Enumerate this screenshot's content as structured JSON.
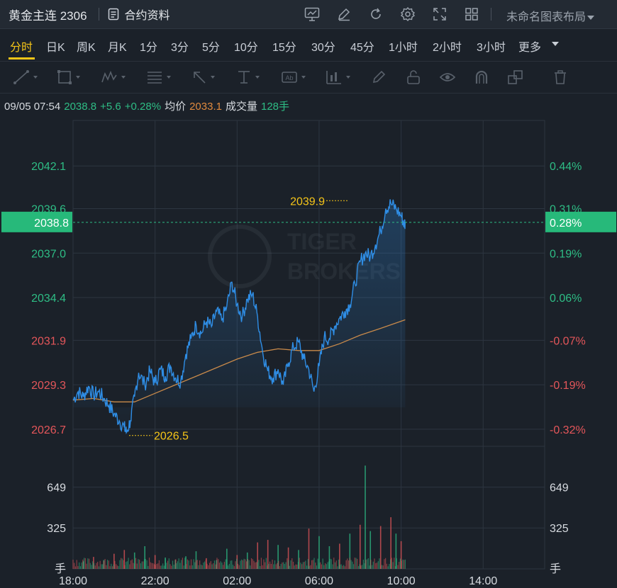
{
  "header": {
    "title": "黄金主连 2306",
    "doc_link": "合约资料",
    "layout_label": "未命名图表布局",
    "icons": [
      "chart-line-icon",
      "pen-edit-icon",
      "refresh-icon",
      "gear-icon",
      "fullscreen-icon",
      "grid-layout-icon"
    ]
  },
  "tabs": [
    "分时",
    "日K",
    "周K",
    "月K",
    "1分",
    "3分",
    "5分",
    "10分",
    "15分",
    "30分",
    "45分",
    "1小时",
    "2小时",
    "3小时",
    "更多"
  ],
  "active_tab": "分时",
  "drawing_tools": [
    "line-draw-icon",
    "rectangle-icon",
    "pattern-icon",
    "fib-icon",
    "arrow-icon",
    "measure-icon",
    "text-label-icon",
    "bars-pattern-icon",
    "brush-icon",
    "lock-icon",
    "eye-icon",
    "magnet-icon",
    "clone-icon",
    "trash-icon"
  ],
  "info": {
    "datetime": "09/05 07:54",
    "price": "2038.8",
    "change": "+5.6",
    "change_pct": "+0.28%",
    "avg_label": "均价",
    "avg_value": "2033.1",
    "volume_label": "成交量",
    "volume_value": "128手"
  },
  "colors": {
    "up": "#2ebd85",
    "down": "#e4565a",
    "price_line": "#2f8ee6",
    "avg_line": "#c98a4a",
    "highlight": "#f5c518",
    "background": "#1b2129"
  },
  "watermark": "TIGER BROKERS",
  "chart_data": {
    "type": "line",
    "x_ticks": [
      "18:00",
      "22:00",
      "02:00",
      "06:00",
      "10:00",
      "14:00"
    ],
    "y_ticks_left": [
      "2042.1",
      "2039.6",
      "2037.0",
      "2034.4",
      "2031.9",
      "2029.3",
      "2026.7"
    ],
    "y_ticks_right": [
      "0.44%",
      "0.31%",
      "0.19%",
      "0.06%",
      "-0.07%",
      "-0.19%",
      "-0.32%"
    ],
    "current_price_label": "2038.8",
    "current_pct_label": "0.28%",
    "high_label": "2039.9",
    "low_label": "2026.5",
    "ylim": [
      2025.7,
      2043.6
    ],
    "x_hours_range": [
      18,
      41
    ],
    "price_series": [
      [
        18.0,
        2028.4
      ],
      [
        18.25,
        2028.9
      ],
      [
        18.5,
        2028.6
      ],
      [
        18.75,
        2029.2
      ],
      [
        19.0,
        2028.7
      ],
      [
        19.25,
        2028.9
      ],
      [
        19.5,
        2028.5
      ],
      [
        19.75,
        2028.1
      ],
      [
        20.0,
        2027.6
      ],
      [
        20.25,
        2027.2
      ],
      [
        20.5,
        2026.8
      ],
      [
        20.6,
        2026.5
      ],
      [
        20.8,
        2027.2
      ],
      [
        21.0,
        2028.6
      ],
      [
        21.2,
        2030.0
      ],
      [
        21.5,
        2029.3
      ],
      [
        21.75,
        2030.1
      ],
      [
        22.0,
        2029.4
      ],
      [
        22.25,
        2030.2
      ],
      [
        22.5,
        2029.8
      ],
      [
        22.75,
        2030.4
      ],
      [
        23.0,
        2029.7
      ],
      [
        23.25,
        2029.5
      ],
      [
        23.5,
        2031.1
      ],
      [
        23.75,
        2032.0
      ],
      [
        24.0,
        2032.8
      ],
      [
        24.25,
        2032.3
      ],
      [
        24.5,
        2033.0
      ],
      [
        24.75,
        2032.7
      ],
      [
        25.0,
        2033.6
      ],
      [
        25.25,
        2033.1
      ],
      [
        25.5,
        2033.9
      ],
      [
        25.75,
        2035.3
      ],
      [
        26.0,
        2034.0
      ],
      [
        26.25,
        2033.3
      ],
      [
        26.5,
        2034.3
      ],
      [
        26.75,
        2034.6
      ],
      [
        27.0,
        2033.3
      ],
      [
        27.25,
        2031.2
      ],
      [
        27.5,
        2030.1
      ],
      [
        27.75,
        2029.7
      ],
      [
        28.0,
        2030.2
      ],
      [
        28.25,
        2029.3
      ],
      [
        28.5,
        2030.6
      ],
      [
        28.75,
        2031.5
      ],
      [
        29.0,
        2031.8
      ],
      [
        29.25,
        2030.8
      ],
      [
        29.5,
        2030.2
      ],
      [
        29.75,
        2028.9
      ],
      [
        30.0,
        2030.4
      ],
      [
        30.25,
        2032.1
      ],
      [
        30.5,
        2032.0
      ],
      [
        30.75,
        2032.7
      ],
      [
        31.0,
        2033.2
      ],
      [
        31.25,
        2033.6
      ],
      [
        31.5,
        2034.0
      ],
      [
        31.75,
        2035.2
      ],
      [
        32.0,
        2036.5
      ],
      [
        32.25,
        2037.0
      ],
      [
        32.5,
        2036.8
      ],
      [
        32.75,
        2037.5
      ],
      [
        33.0,
        2038.3
      ],
      [
        33.25,
        2039.6
      ],
      [
        33.5,
        2039.9
      ],
      [
        33.75,
        2039.6
      ],
      [
        34.0,
        2039.2
      ],
      [
        34.15,
        2038.7
      ],
      [
        34.2,
        2038.8
      ]
    ],
    "avg_series": [
      [
        18.0,
        2028.4
      ],
      [
        19.0,
        2028.5
      ],
      [
        20.0,
        2028.3
      ],
      [
        21.0,
        2028.3
      ],
      [
        22.0,
        2028.8
      ],
      [
        23.0,
        2029.3
      ],
      [
        24.0,
        2029.8
      ],
      [
        25.0,
        2030.3
      ],
      [
        26.0,
        2030.8
      ],
      [
        27.0,
        2031.2
      ],
      [
        28.0,
        2031.4
      ],
      [
        29.0,
        2031.3
      ],
      [
        30.0,
        2031.3
      ],
      [
        31.0,
        2031.7
      ],
      [
        32.0,
        2032.2
      ],
      [
        33.0,
        2032.6
      ],
      [
        34.2,
        2033.1
      ]
    ],
    "volume": {
      "ylim": [
        0,
        973
      ],
      "y_ticks": [
        "649",
        "325"
      ],
      "unit_label": "手",
      "bars": [
        [
          18.5,
          60,
          "up"
        ],
        [
          19.0,
          95,
          "down"
        ],
        [
          19.5,
          70,
          "up"
        ],
        [
          20.0,
          120,
          "down"
        ],
        [
          20.5,
          150,
          "down"
        ],
        [
          21.0,
          130,
          "up"
        ],
        [
          21.5,
          180,
          "up"
        ],
        [
          22.0,
          110,
          "down"
        ],
        [
          22.5,
          90,
          "up"
        ],
        [
          23.0,
          75,
          "down"
        ],
        [
          23.5,
          100,
          "up"
        ],
        [
          24.0,
          140,
          "up"
        ],
        [
          24.5,
          85,
          "down"
        ],
        [
          25.0,
          70,
          "up"
        ],
        [
          25.5,
          160,
          "up"
        ],
        [
          26.0,
          110,
          "down"
        ],
        [
          26.5,
          130,
          "up"
        ],
        [
          27.0,
          210,
          "down"
        ],
        [
          27.5,
          230,
          "down"
        ],
        [
          28.0,
          190,
          "up"
        ],
        [
          28.5,
          170,
          "down"
        ],
        [
          29.0,
          150,
          "up"
        ],
        [
          29.5,
          320,
          "down"
        ],
        [
          30.0,
          260,
          "up"
        ],
        [
          30.5,
          180,
          "up"
        ],
        [
          31.0,
          200,
          "down"
        ],
        [
          31.5,
          280,
          "up"
        ],
        [
          32.0,
          350,
          "down"
        ],
        [
          32.25,
          820,
          "up"
        ],
        [
          32.5,
          300,
          "up"
        ],
        [
          33.0,
          340,
          "down"
        ],
        [
          33.5,
          410,
          "down"
        ],
        [
          33.75,
          280,
          "up"
        ],
        [
          34.0,
          220,
          "down"
        ]
      ]
    }
  }
}
